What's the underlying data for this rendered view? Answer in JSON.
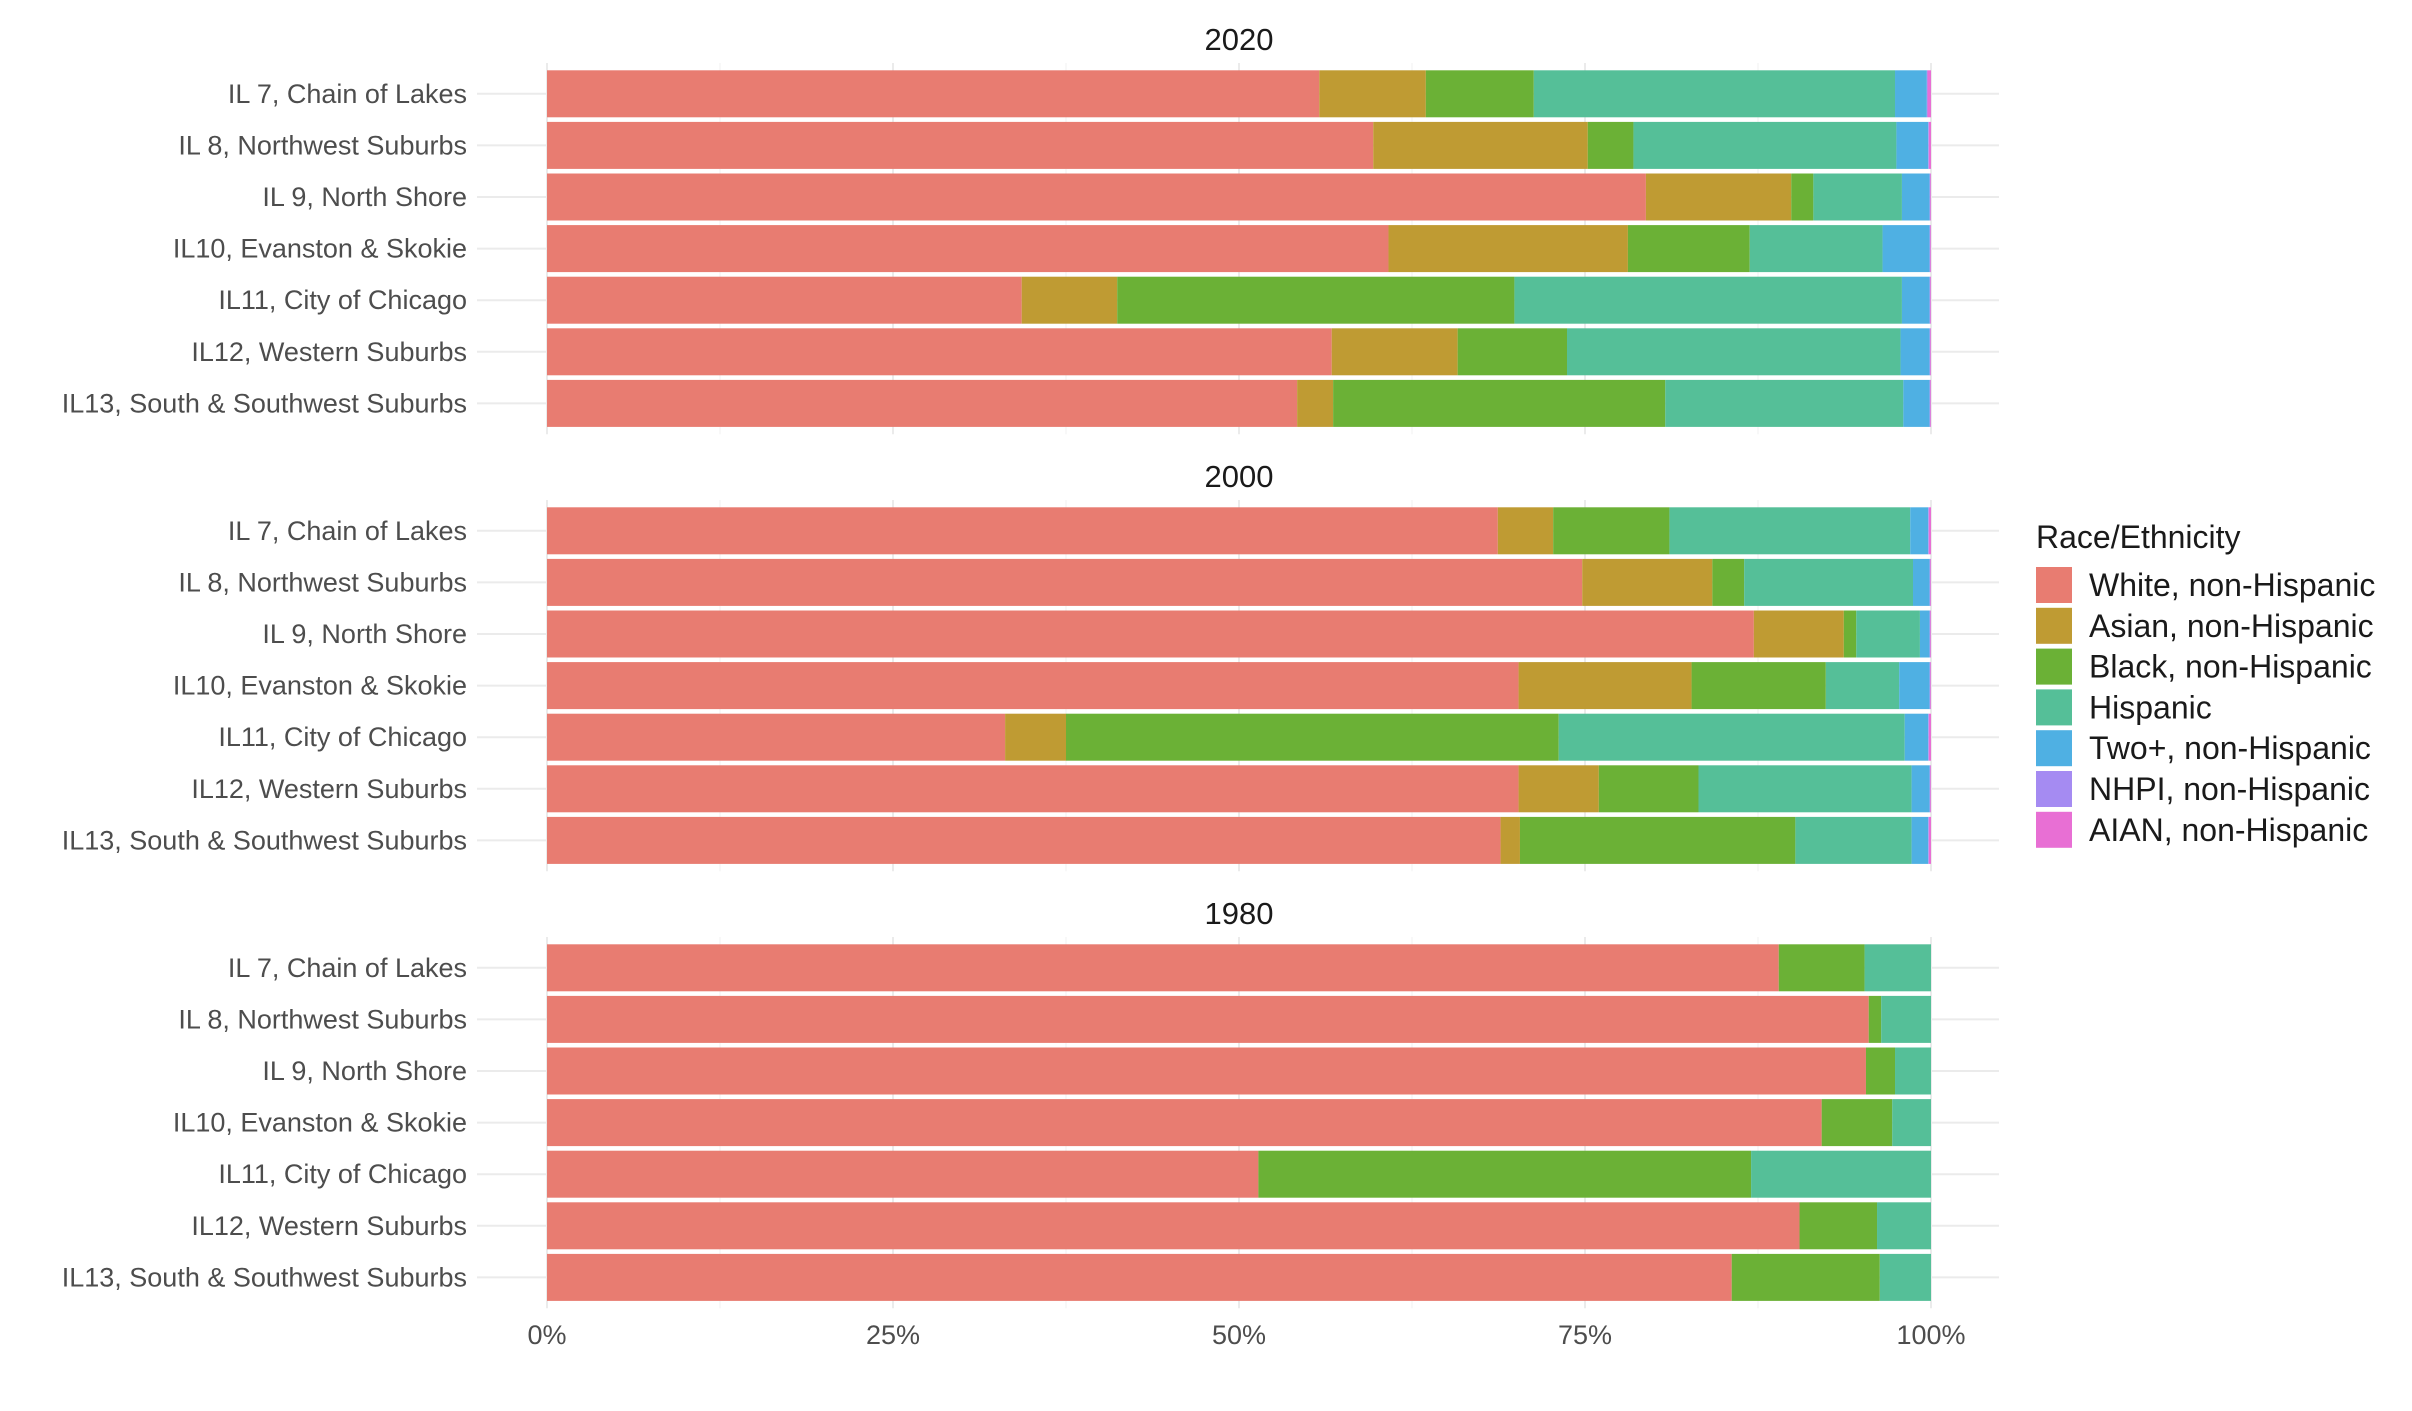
{
  "chart_data": {
    "type": "bar",
    "orientation": "horizontal",
    "stacked": "percent",
    "grid": true,
    "legend_position": "right",
    "legend_title": "Race/Ethnicity",
    "xlim": [
      0,
      100
    ],
    "x_ticks": [
      0,
      25,
      50,
      75,
      100
    ],
    "x_tick_labels": [
      "0%",
      "25%",
      "50%",
      "75%",
      "100%"
    ],
    "categories": [
      "IL 7, Chain of Lakes",
      "IL 8, Northwest Suburbs",
      "IL 9, North Shore",
      "IL10, Evanston & Skokie",
      "IL11, City of Chicago",
      "IL12, Western Suburbs",
      "IL13, South & Southwest Suburbs"
    ],
    "series": [
      {
        "name": "White, non-Hispanic",
        "color": "#E87C71"
      },
      {
        "name": "Asian, non-Hispanic",
        "color": "#BF9B33"
      },
      {
        "name": "Black, non-Hispanic",
        "color": "#6BB136"
      },
      {
        "name": "Hispanic",
        "color": "#55BF98"
      },
      {
        "name": "Two+, non-Hispanic",
        "color": "#4FB0E3"
      },
      {
        "name": "NHPI, non-Hispanic",
        "color": "#A58BF2"
      },
      {
        "name": "AIAN, non-Hispanic",
        "color": "#E86FD4"
      }
    ],
    "facets": [
      {
        "title": "2020",
        "values": [
          [
            55.8,
            7.7,
            7.8,
            26.1,
            2.3,
            0.05,
            0.25
          ],
          [
            59.7,
            15.5,
            3.3,
            19.0,
            2.3,
            0.05,
            0.15
          ],
          [
            79.4,
            10.5,
            1.6,
            6.4,
            2.0,
            0.05,
            0.05
          ],
          [
            60.8,
            17.3,
            8.8,
            9.6,
            3.4,
            0.05,
            0.05
          ],
          [
            34.3,
            6.9,
            28.7,
            28.0,
            2.0,
            0.05,
            0.05
          ],
          [
            56.7,
            9.1,
            7.9,
            24.1,
            2.1,
            0.05,
            0.05
          ],
          [
            54.2,
            2.6,
            24.0,
            17.2,
            1.9,
            0.05,
            0.05
          ]
        ]
      },
      {
        "title": "2000",
        "values": [
          [
            68.7,
            4.0,
            8.4,
            17.4,
            1.3,
            0.05,
            0.15
          ],
          [
            74.8,
            9.4,
            2.3,
            12.2,
            1.2,
            0.05,
            0.05
          ],
          [
            87.2,
            6.5,
            0.9,
            4.6,
            0.7,
            0.05,
            0.05
          ],
          [
            70.2,
            12.5,
            9.7,
            5.3,
            2.2,
            0.05,
            0.05
          ],
          [
            33.1,
            4.4,
            35.6,
            25.0,
            1.7,
            0.05,
            0.15
          ],
          [
            70.2,
            5.8,
            7.2,
            15.4,
            1.3,
            0.05,
            0.05
          ],
          [
            68.9,
            1.4,
            19.9,
            8.4,
            1.2,
            0.05,
            0.15
          ]
        ]
      },
      {
        "title": "1980",
        "values": [
          [
            89.0,
            0,
            6.2,
            4.8,
            0,
            0,
            0
          ],
          [
            95.5,
            0,
            0.9,
            3.6,
            0,
            0,
            0
          ],
          [
            95.3,
            0,
            2.1,
            2.6,
            0,
            0,
            0
          ],
          [
            92.1,
            0,
            5.1,
            2.8,
            0,
            0,
            0
          ],
          [
            51.4,
            0,
            35.6,
            13.0,
            0,
            0,
            0
          ],
          [
            90.5,
            0,
            5.6,
            3.9,
            0,
            0,
            0
          ],
          [
            85.6,
            0,
            10.7,
            3.7,
            0,
            0,
            0
          ]
        ]
      }
    ]
  }
}
